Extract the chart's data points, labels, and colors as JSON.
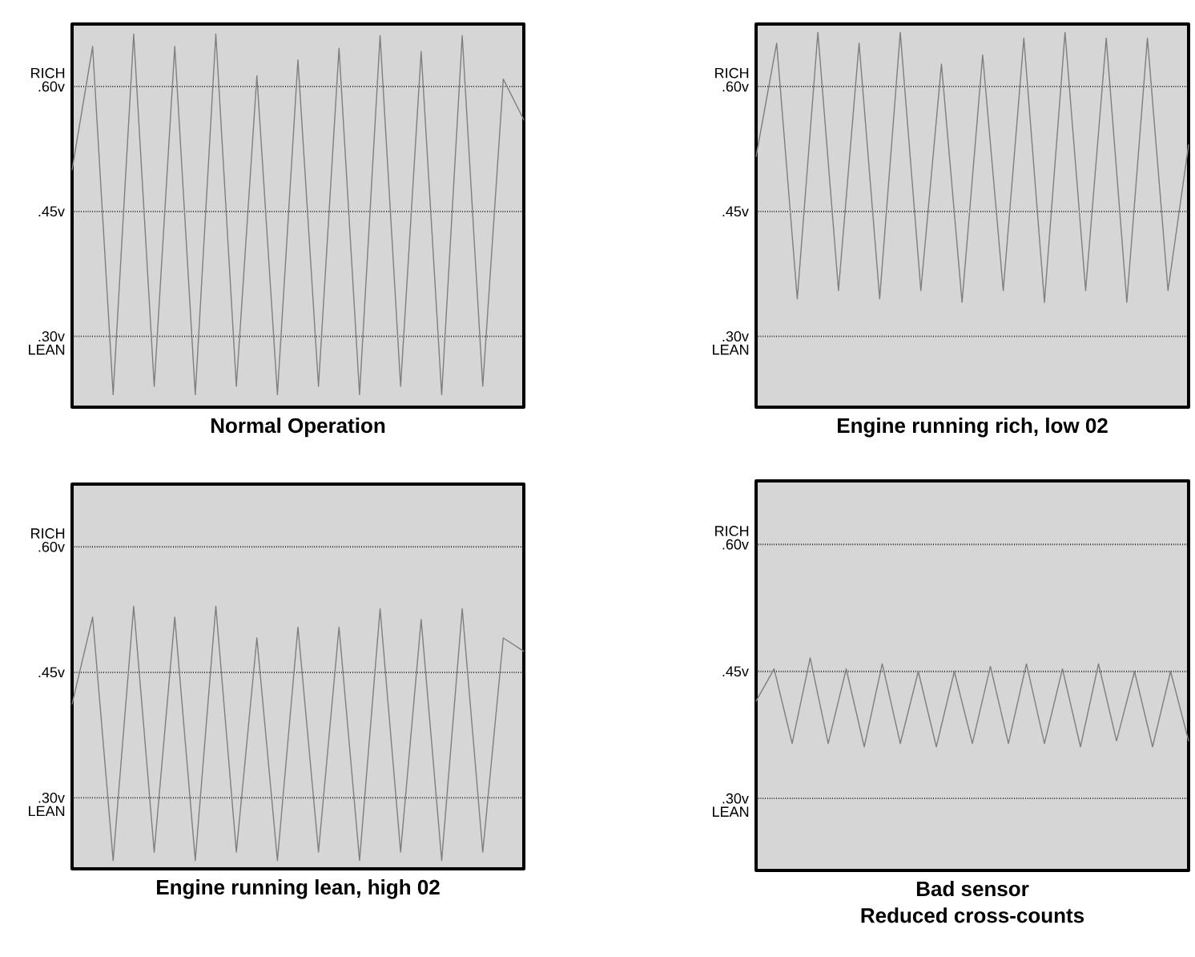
{
  "chart_data": [
    {
      "type": "line",
      "title": "Normal Operation",
      "annotations": [
        "RICH",
        "LEAN"
      ],
      "categories": [
        null,
        null,
        null,
        null,
        null,
        null,
        null,
        null,
        null,
        null,
        null,
        null,
        null,
        null,
        null,
        null,
        null,
        null,
        null,
        null,
        null,
        null,
        null
      ],
      "values": [
        0.5,
        0.648,
        0.23,
        0.663,
        0.24,
        0.648,
        0.23,
        0.663,
        0.24,
        0.613,
        0.23,
        0.632,
        0.24,
        0.646,
        0.23,
        0.661,
        0.24,
        0.642,
        0.23,
        0.661,
        0.24,
        0.609,
        0.56
      ],
      "color": "#7f7f7f",
      "ylim": [
        0.215,
        0.675
      ],
      "yticks": [
        {
          "value": 0.3,
          "label": ".30v"
        },
        {
          "value": 0.45,
          "label": ".45v"
        },
        {
          "value": 0.6,
          "label": ".60v"
        }
      ],
      "grid": "y",
      "tick_labels": "y"
    },
    {
      "type": "line",
      "title": "Engine running rich, low 02",
      "annotations": [
        "RICH",
        "LEAN"
      ],
      "categories": [
        null,
        null,
        null,
        null,
        null,
        null,
        null,
        null,
        null,
        null,
        null,
        null,
        null,
        null,
        null,
        null,
        null,
        null,
        null,
        null,
        null,
        null
      ],
      "values": [
        0.516,
        0.652,
        0.345,
        0.665,
        0.355,
        0.652,
        0.345,
        0.665,
        0.355,
        0.627,
        0.341,
        0.638,
        0.355,
        0.658,
        0.341,
        0.665,
        0.355,
        0.658,
        0.341,
        0.658,
        0.355,
        0.53
      ],
      "color": "#7f7f7f",
      "ylim": [
        0.215,
        0.675
      ],
      "yticks": [
        {
          "value": 0.3,
          "label": ".30v"
        },
        {
          "value": 0.45,
          "label": ".45v"
        },
        {
          "value": 0.6,
          "label": ".60v"
        }
      ],
      "grid": "y",
      "tick_labels": "y"
    },
    {
      "type": "line",
      "title": "Engine running lean, high 02",
      "annotations": [
        "RICH",
        "LEAN"
      ],
      "categories": [
        null,
        null,
        null,
        null,
        null,
        null,
        null,
        null,
        null,
        null,
        null,
        null,
        null,
        null,
        null,
        null,
        null,
        null,
        null,
        null,
        null,
        null,
        null
      ],
      "values": [
        0.412,
        0.516,
        0.225,
        0.529,
        0.235,
        0.516,
        0.225,
        0.529,
        0.235,
        0.491,
        0.225,
        0.504,
        0.235,
        0.504,
        0.225,
        0.526,
        0.235,
        0.513,
        0.225,
        0.526,
        0.235,
        0.491,
        0.475
      ],
      "color": "#7f7f7f",
      "ylim": [
        0.215,
        0.675
      ],
      "yticks": [
        {
          "value": 0.3,
          "label": ".30v"
        },
        {
          "value": 0.45,
          "label": ".45v"
        },
        {
          "value": 0.6,
          "label": ".60v"
        }
      ],
      "grid": "y",
      "tick_labels": "y"
    },
    {
      "type": "line",
      "title": "Bad sensor",
      "subtitle": "Reduced cross-counts",
      "annotations": [
        "RICH",
        "LEAN"
      ],
      "categories": [
        null,
        null,
        null,
        null,
        null,
        null,
        null,
        null,
        null,
        null,
        null,
        null,
        null,
        null,
        null,
        null,
        null,
        null,
        null,
        null,
        null,
        null,
        null,
        null,
        null
      ],
      "values": [
        0.415,
        0.453,
        0.365,
        0.466,
        0.365,
        0.453,
        0.361,
        0.459,
        0.365,
        0.45,
        0.361,
        0.45,
        0.365,
        0.456,
        0.365,
        0.459,
        0.365,
        0.453,
        0.361,
        0.459,
        0.368,
        0.45,
        0.361,
        0.45,
        0.368
      ],
      "color": "#7f7f7f",
      "ylim": [
        0.215,
        0.675
      ],
      "yticks": [
        {
          "value": 0.3,
          "label": ".30v"
        },
        {
          "value": 0.45,
          "label": ".45v"
        },
        {
          "value": 0.6,
          "label": ".60v"
        }
      ],
      "grid": "y",
      "tick_labels": "y"
    }
  ]
}
